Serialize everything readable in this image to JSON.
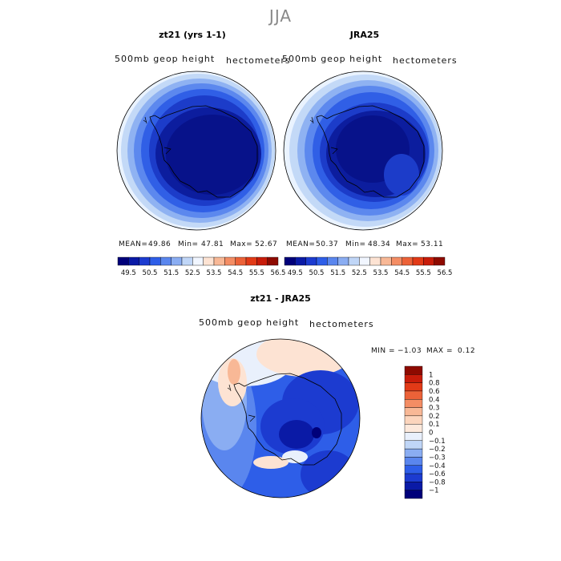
{
  "figure": {
    "title": "JJA"
  },
  "panels": {
    "model": {
      "title": "zt21 (yrs 1-1)",
      "field": "500mb  geop  height",
      "units": "hectometers",
      "mean_label": "MEAN=",
      "mean": "49.86",
      "min_label": "Min=",
      "min": "47.81",
      "max_label": "Max=",
      "max": "52.67"
    },
    "obs": {
      "title": "JRA25",
      "field": "500mb  geop  height",
      "units": "hectometers",
      "mean_label": "MEAN=",
      "mean": "50.37",
      "min_label": "Min=",
      "min": "48.34",
      "max_label": "Max=",
      "max": "53.11"
    },
    "diff": {
      "title": "zt21 - JRA25",
      "field": "500mb  geop  height",
      "units": "hectometers",
      "min_label": "MIN =",
      "min": "−1.03",
      "max_label": "MAX =",
      "max": "0.12"
    }
  },
  "chart_data": [
    {
      "type": "heatmap",
      "name": "model 500mb geopotential height (polar stereographic, Antarctica)",
      "title": "zt21 (yrs 1-1)",
      "units": "hectometers",
      "colorbar_levels": [
        "49.5",
        "50.5",
        "51.5",
        "52.5",
        "53.5",
        "54.5",
        "55.5",
        "56.5"
      ],
      "colorbar_colors": [
        "#00007a",
        "#0a1aa6",
        "#1c3bd0",
        "#2e5ee8",
        "#5a86ee",
        "#8aadf2",
        "#c0d6f7",
        "#f1f6ff",
        "#fde3d3",
        "#f8b896",
        "#f48d64",
        "#ec6238",
        "#e23a17",
        "#c81c0a",
        "#8e0a00"
      ],
      "stats": {
        "mean": 49.86,
        "min": 47.81,
        "max": 52.67
      }
    },
    {
      "type": "heatmap",
      "name": "reanalysis 500mb geopotential height (polar stereographic, Antarctica)",
      "title": "JRA25",
      "units": "hectometers",
      "colorbar_levels": [
        "49.5",
        "50.5",
        "51.5",
        "52.5",
        "53.5",
        "54.5",
        "55.5",
        "56.5"
      ],
      "colorbar_colors": [
        "#00007a",
        "#0a1aa6",
        "#1c3bd0",
        "#2e5ee8",
        "#5a86ee",
        "#8aadf2",
        "#c0d6f7",
        "#f1f6ff",
        "#fde3d3",
        "#f8b896",
        "#f48d64",
        "#ec6238",
        "#e23a17",
        "#c81c0a",
        "#8e0a00"
      ],
      "stats": {
        "mean": 50.37,
        "min": 48.34,
        "max": 53.11
      }
    },
    {
      "type": "heatmap",
      "name": "difference 500mb geopotential height (polar stereographic, Antarctica)",
      "title": "zt21 - JRA25",
      "units": "hectometers",
      "colorbar_levels": [
        "1",
        "0.8",
        "0.6",
        "0.4",
        "0.3",
        "0.2",
        "0.1",
        "0",
        "−0.1",
        "−0.2",
        "−0.3",
        "−0.4",
        "−0.6",
        "−0.8",
        "−1"
      ],
      "colorbar_colors": [
        "#8e0a00",
        "#c81c0a",
        "#e23a17",
        "#ec6238",
        "#f48d64",
        "#f8b896",
        "#fcd5bd",
        "#fde9dc",
        "#e9f0fc",
        "#c0d6f7",
        "#8aadf2",
        "#5a86ee",
        "#2e5ee8",
        "#1c3bd0",
        "#0a1aa6",
        "#00007a"
      ],
      "stats": {
        "min": -1.03,
        "max": 0.12
      }
    }
  ]
}
